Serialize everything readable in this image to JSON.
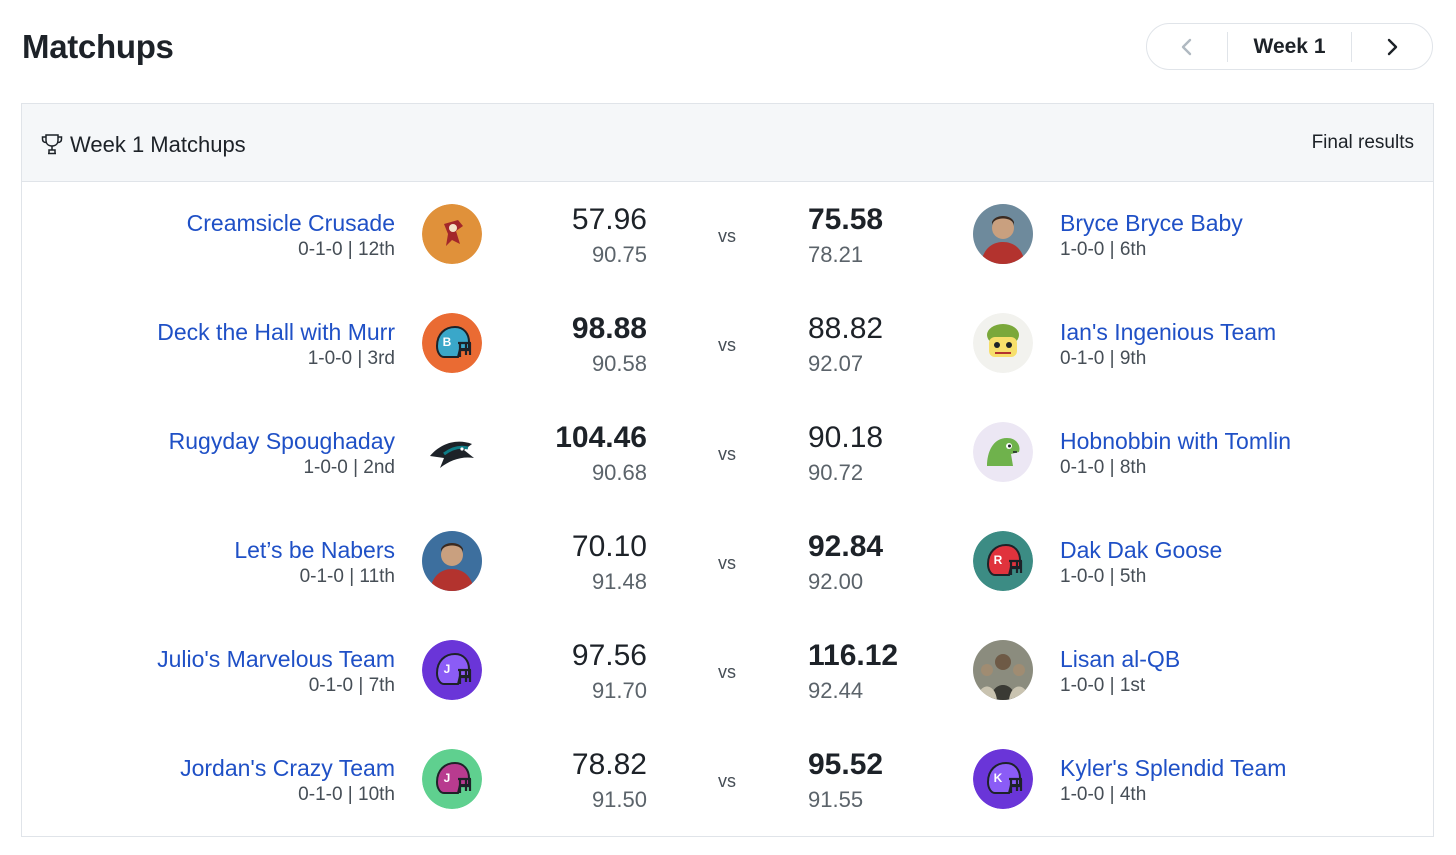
{
  "page": {
    "title": "Matchups"
  },
  "week_nav": {
    "prev_icon": "chevron-left-icon",
    "label": "Week 1",
    "next_icon": "chevron-right-icon"
  },
  "card": {
    "icon": "trophy-icon",
    "title": "Week 1 Matchups",
    "status": "Final results"
  },
  "vs_label": "vs",
  "matchups": [
    {
      "home": {
        "name": "Creamsicle Crusade",
        "record": "0-1-0 | 12th",
        "score": "57.96",
        "projected": "90.75",
        "winner": false,
        "avatar": "pirate-logo",
        "avatar_bg": "#e0913a"
      },
      "away": {
        "name": "Bryce Bryce Baby",
        "record": "1-0-0 | 6th",
        "score": "75.58",
        "projected": "78.21",
        "winner": true,
        "avatar": "person-photo",
        "avatar_bg": "#6e8a9c"
      }
    },
    {
      "home": {
        "name": "Deck the Hall with Murr",
        "record": "1-0-0 | 3rd",
        "score": "98.88",
        "projected": "90.58",
        "winner": true,
        "avatar": "helmet-b",
        "avatar_bg": "#ea6b33",
        "helmet": "#3aa7c9",
        "letter": "B"
      },
      "away": {
        "name": "Ian's Ingenious Team",
        "record": "0-1-0 | 9th",
        "score": "88.82",
        "projected": "92.07",
        "winner": false,
        "avatar": "mascot-cartoon",
        "avatar_bg": "#f2f2ee"
      }
    },
    {
      "home": {
        "name": "Rugyday Spoughaday",
        "record": "1-0-0 | 2nd",
        "score": "104.46",
        "projected": "90.68",
        "winner": true,
        "avatar": "shark-logo",
        "avatar_bg": "#ffffff"
      },
      "away": {
        "name": "Hobnobbin with Tomlin",
        "record": "0-1-0 | 8th",
        "score": "90.18",
        "projected": "90.72",
        "winner": false,
        "avatar": "dinosaur-cartoon",
        "avatar_bg": "#ece7f4"
      }
    },
    {
      "home": {
        "name": "Let’s be Nabers",
        "record": "0-1-0 | 11th",
        "score": "70.10",
        "projected": "91.48",
        "winner": false,
        "avatar": "person-photo",
        "avatar_bg": "#3d6f9e"
      },
      "away": {
        "name": "Dak Dak Goose",
        "record": "1-0-0 | 5th",
        "score": "92.84",
        "projected": "92.00",
        "winner": true,
        "avatar": "helmet-r",
        "avatar_bg": "#3c8c84",
        "helmet": "#e0333d",
        "letter": "R"
      }
    },
    {
      "home": {
        "name": "Julio's Marvelous Team",
        "record": "0-1-0 | 7th",
        "score": "97.56",
        "projected": "91.70",
        "winner": false,
        "avatar": "helmet-j",
        "avatar_bg": "#6a35d8",
        "helmet": "#8b5cf6",
        "letter": "J"
      },
      "away": {
        "name": "Lisan al-QB",
        "record": "1-0-0 | 1st",
        "score": "116.12",
        "projected": "92.44",
        "winner": true,
        "avatar": "group-photo",
        "avatar_bg": "#8b8c7e"
      }
    },
    {
      "home": {
        "name": "Jordan's Crazy Team",
        "record": "0-1-0 | 10th",
        "score": "78.82",
        "projected": "91.50",
        "winner": false,
        "avatar": "helmet-j",
        "avatar_bg": "#5fd08f",
        "helmet": "#b83b8f",
        "letter": "J"
      },
      "away": {
        "name": "Kyler's Splendid Team",
        "record": "1-0-0 | 4th",
        "score": "95.52",
        "projected": "91.55",
        "winner": true,
        "avatar": "helmet-k",
        "avatar_bg": "#6a35d8",
        "helmet": "#8b5cf6",
        "letter": "K"
      }
    }
  ]
}
